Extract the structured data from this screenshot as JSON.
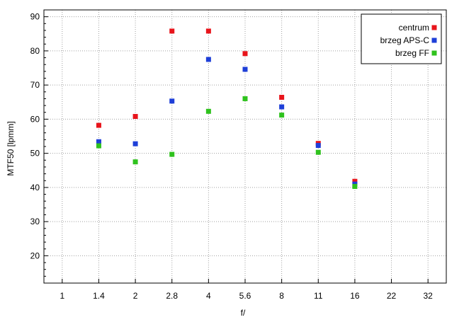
{
  "chart_data": {
    "type": "scatter",
    "xlabel": "f/",
    "ylabel": "MTF50 [lpmm]",
    "x_tick_labels": [
      "1",
      "1.4",
      "2",
      "2.8",
      "4",
      "5.6",
      "8",
      "11",
      "16",
      "22",
      "32"
    ],
    "y_ticks": [
      20,
      30,
      40,
      50,
      60,
      70,
      80,
      90
    ],
    "ylim": [
      12,
      92
    ],
    "grid": true,
    "legend_position": "top-right",
    "series": [
      {
        "name": "centrum",
        "color": "#e8141b",
        "points": [
          {
            "x": "1.4",
            "y": 58.2
          },
          {
            "x": "2",
            "y": 60.8
          },
          {
            "x": "2.8",
            "y": 85.8
          },
          {
            "x": "4",
            "y": 85.8
          },
          {
            "x": "5.6",
            "y": 79.2
          },
          {
            "x": "8",
            "y": 66.4
          },
          {
            "x": "11",
            "y": 52.9
          },
          {
            "x": "16",
            "y": 41.8
          }
        ]
      },
      {
        "name": "brzeg APS-C",
        "color": "#1e3fd8",
        "points": [
          {
            "x": "1.4",
            "y": 53.4
          },
          {
            "x": "2",
            "y": 52.8
          },
          {
            "x": "2.8",
            "y": 65.3
          },
          {
            "x": "4",
            "y": 77.5
          },
          {
            "x": "5.6",
            "y": 74.6
          },
          {
            "x": "8",
            "y": 63.6
          },
          {
            "x": "11",
            "y": 52.3
          },
          {
            "x": "16",
            "y": 41.0
          }
        ]
      },
      {
        "name": "brzeg FF",
        "color": "#2fc21d",
        "points": [
          {
            "x": "1.4",
            "y": 52.2
          },
          {
            "x": "2",
            "y": 47.5
          },
          {
            "x": "2.8",
            "y": 49.7
          },
          {
            "x": "4",
            "y": 62.3
          },
          {
            "x": "5.6",
            "y": 66.0
          },
          {
            "x": "8",
            "y": 61.2
          },
          {
            "x": "11",
            "y": 50.3
          },
          {
            "x": "16",
            "y": 40.3
          }
        ]
      }
    ]
  }
}
